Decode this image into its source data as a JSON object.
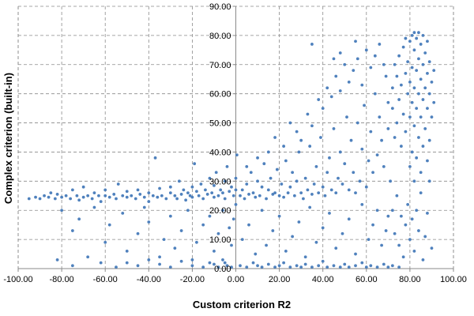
{
  "chart_data": {
    "type": "scatter",
    "xlabel": "Custom criterion R2",
    "ylabel": "Complex criterion (built-in)",
    "xlim": [
      -100,
      100
    ],
    "ylim": [
      0,
      90
    ],
    "x_ticks": [
      "-100.00",
      "-80.00",
      "-60.00",
      "-40.00",
      "-20.00",
      "0.00",
      "20.00",
      "40.00",
      "60.00",
      "80.00",
      "100.00"
    ],
    "y_ticks": [
      "0.00",
      "10.00",
      "20.00",
      "30.00",
      "40.00",
      "50.00",
      "60.00",
      "70.00",
      "80.00",
      "90.00"
    ],
    "grid": true,
    "marker_color": "#4f81bd",
    "points": [
      [
        -95,
        24
      ],
      [
        -92,
        24.5
      ],
      [
        -90,
        24
      ],
      [
        -88,
        25
      ],
      [
        -86,
        24.5
      ],
      [
        -85,
        26
      ],
      [
        -83,
        24
      ],
      [
        -82,
        25.5
      ],
      [
        -80,
        24.5
      ],
      [
        -78,
        25
      ],
      [
        -76,
        24
      ],
      [
        -75,
        27
      ],
      [
        -73,
        25
      ],
      [
        -72,
        23.5
      ],
      [
        -70,
        24.5
      ],
      [
        -70,
        28
      ],
      [
        -68,
        25
      ],
      [
        -66,
        24
      ],
      [
        -65,
        26
      ],
      [
        -63,
        25
      ],
      [
        -62,
        23
      ],
      [
        -60,
        25
      ],
      [
        -60,
        27
      ],
      [
        -58,
        24.5
      ],
      [
        -56,
        25.5
      ],
      [
        -55,
        24
      ],
      [
        -54,
        29
      ],
      [
        -52,
        25
      ],
      [
        -50,
        24.5
      ],
      [
        -50,
        26.5
      ],
      [
        -48,
        25
      ],
      [
        -46,
        24
      ],
      [
        -45,
        27
      ],
      [
        -44,
        25.5
      ],
      [
        -42,
        24.5
      ],
      [
        -40,
        26
      ],
      [
        -40,
        23
      ],
      [
        -38,
        25
      ],
      [
        -37,
        38
      ],
      [
        -36,
        24.5
      ],
      [
        -35,
        27.5
      ],
      [
        -34,
        25
      ],
      [
        -32,
        24
      ],
      [
        -30,
        26
      ],
      [
        -30,
        28
      ],
      [
        -28,
        25
      ],
      [
        -27,
        24
      ],
      [
        -26,
        30
      ],
      [
        -25,
        25.5
      ],
      [
        -24,
        27
      ],
      [
        -23,
        23.5
      ],
      [
        -22,
        26
      ],
      [
        -21,
        25
      ],
      [
        -20,
        28
      ],
      [
        -20,
        24.5
      ],
      [
        -19,
        36
      ],
      [
        -18,
        26.5
      ],
      [
        -17,
        25
      ],
      [
        -16,
        29
      ],
      [
        -15,
        24
      ],
      [
        -14,
        27
      ],
      [
        -13,
        25.5
      ],
      [
        -12,
        31
      ],
      [
        -11,
        26
      ],
      [
        -10,
        24.5
      ],
      [
        -10,
        28.5
      ],
      [
        -9,
        33
      ],
      [
        -8,
        25
      ],
      [
        -7,
        27
      ],
      [
        -6,
        26
      ],
      [
        -5,
        30
      ],
      [
        -5,
        24
      ],
      [
        -4,
        35
      ],
      [
        -3,
        26.5
      ],
      [
        -2,
        28
      ],
      [
        -1,
        25
      ],
      [
        0,
        27
      ],
      [
        0,
        31
      ],
      [
        0,
        22
      ],
      [
        0.5,
        39
      ],
      [
        -80,
        20
      ],
      [
        -75,
        13
      ],
      [
        -72,
        17
      ],
      [
        -65,
        21
      ],
      [
        -60,
        9
      ],
      [
        -58,
        15
      ],
      [
        -52,
        19
      ],
      [
        -50,
        6
      ],
      [
        -45,
        12
      ],
      [
        -42,
        21
      ],
      [
        -40,
        16
      ],
      [
        -35,
        4
      ],
      [
        -33,
        10
      ],
      [
        -30,
        18
      ],
      [
        -28,
        7
      ],
      [
        -25,
        13
      ],
      [
        -22,
        20
      ],
      [
        -20,
        3
      ],
      [
        -18,
        9
      ],
      [
        -15,
        15
      ],
      [
        -12,
        18
      ],
      [
        -10,
        6
      ],
      [
        -8,
        12
      ],
      [
        -6,
        20
      ],
      [
        -5,
        2
      ],
      [
        -3,
        14
      ],
      [
        -2,
        8
      ],
      [
        -1,
        17
      ],
      [
        -82,
        3
      ],
      [
        -75,
        1
      ],
      [
        -68,
        4
      ],
      [
        -62,
        2
      ],
      [
        -55,
        0.5
      ],
      [
        -50,
        2
      ],
      [
        -45,
        1
      ],
      [
        -40,
        3
      ],
      [
        -35,
        1.5
      ],
      [
        -30,
        0.5
      ],
      [
        -25,
        2.5
      ],
      [
        -20,
        1
      ],
      [
        -15,
        0.5
      ],
      [
        -12,
        2
      ],
      [
        -10,
        1.5
      ],
      [
        -8,
        0.5
      ],
      [
        -6,
        3
      ],
      [
        -4,
        1
      ],
      [
        -2,
        0.5
      ],
      [
        2,
        25
      ],
      [
        3,
        27
      ],
      [
        4,
        24
      ],
      [
        5,
        29
      ],
      [
        6,
        25.5
      ],
      [
        7,
        33
      ],
      [
        8,
        26
      ],
      [
        9,
        24.5
      ],
      [
        10,
        30
      ],
      [
        11,
        25
      ],
      [
        12,
        28
      ],
      [
        13,
        36
      ],
      [
        14,
        24
      ],
      [
        15,
        27
      ],
      [
        16,
        31
      ],
      [
        17,
        25.5
      ],
      [
        18,
        26
      ],
      [
        19,
        34
      ],
      [
        20,
        25
      ],
      [
        21,
        29
      ],
      [
        22,
        24.5
      ],
      [
        23,
        37
      ],
      [
        24,
        26
      ],
      [
        25,
        28
      ],
      [
        26,
        33
      ],
      [
        27,
        25
      ],
      [
        28,
        30
      ],
      [
        29,
        40
      ],
      [
        30,
        26
      ],
      [
        31,
        24
      ],
      [
        32,
        31
      ],
      [
        33,
        27
      ],
      [
        34,
        42
      ],
      [
        35,
        25.5
      ],
      [
        36,
        29
      ],
      [
        37,
        35
      ],
      [
        38,
        26
      ],
      [
        39,
        45
      ],
      [
        40,
        28
      ],
      [
        41,
        25
      ],
      [
        42,
        33
      ],
      [
        43,
        38
      ],
      [
        44,
        27
      ],
      [
        45,
        48
      ],
      [
        46,
        26
      ],
      [
        47,
        31
      ],
      [
        48,
        40
      ],
      [
        49,
        29
      ],
      [
        50,
        36
      ],
      [
        51,
        52
      ],
      [
        52,
        27
      ],
      [
        53,
        44
      ],
      [
        54,
        33
      ],
      [
        55,
        26
      ],
      [
        56,
        50
      ],
      [
        57,
        30
      ],
      [
        58,
        41
      ],
      [
        59,
        56
      ],
      [
        60,
        28
      ],
      [
        61,
        37
      ],
      [
        62,
        47
      ],
      [
        63,
        33
      ],
      [
        64,
        60
      ],
      [
        65,
        39
      ],
      [
        66,
        52
      ],
      [
        67,
        44
      ],
      [
        68,
        35
      ],
      [
        69,
        66
      ],
      [
        70,
        48
      ],
      [
        70,
        57
      ],
      [
        5,
        35
      ],
      [
        10,
        38
      ],
      [
        15,
        40
      ],
      [
        18,
        45
      ],
      [
        22,
        42
      ],
      [
        25,
        50
      ],
      [
        28,
        47
      ],
      [
        30,
        44
      ],
      [
        33,
        53
      ],
      [
        35,
        49
      ],
      [
        38,
        58
      ],
      [
        40,
        55
      ],
      [
        42,
        62
      ],
      [
        44,
        59
      ],
      [
        46,
        66
      ],
      [
        48,
        61
      ],
      [
        50,
        70
      ],
      [
        52,
        64
      ],
      [
        54,
        68
      ],
      [
        56,
        72
      ],
      [
        58,
        63
      ],
      [
        60,
        75
      ],
      [
        62,
        69
      ],
      [
        64,
        73
      ],
      [
        66,
        77
      ],
      [
        68,
        70
      ],
      [
        35,
        77
      ],
      [
        45,
        72
      ],
      [
        55,
        78
      ],
      [
        48,
        74
      ],
      [
        72,
        55
      ],
      [
        72,
        62
      ],
      [
        73,
        45
      ],
      [
        73,
        70
      ],
      [
        74,
        50
      ],
      [
        74,
        66
      ],
      [
        75,
        58
      ],
      [
        75,
        73
      ],
      [
        76,
        42
      ],
      [
        76,
        63
      ],
      [
        77,
        53
      ],
      [
        77,
        76
      ],
      [
        78,
        47
      ],
      [
        78,
        67
      ],
      [
        78,
        79
      ],
      [
        79,
        60
      ],
      [
        79,
        71
      ],
      [
        80,
        52
      ],
      [
        80,
        64
      ],
      [
        80,
        78
      ],
      [
        81,
        57
      ],
      [
        81,
        69
      ],
      [
        81,
        80
      ],
      [
        82,
        49
      ],
      [
        82,
        62
      ],
      [
        82,
        75
      ],
      [
        82,
        81
      ],
      [
        83,
        55
      ],
      [
        83,
        68
      ],
      [
        83,
        79
      ],
      [
        84,
        60
      ],
      [
        84,
        72
      ],
      [
        84,
        81
      ],
      [
        85,
        52
      ],
      [
        85,
        65
      ],
      [
        85,
        77
      ],
      [
        86,
        58
      ],
      [
        86,
        70
      ],
      [
        86,
        80
      ],
      [
        87,
        62
      ],
      [
        87,
        74
      ],
      [
        88,
        55
      ],
      [
        88,
        67
      ],
      [
        88,
        78
      ],
      [
        89,
        60
      ],
      [
        89,
        71
      ],
      [
        90,
        52
      ],
      [
        90,
        64
      ],
      [
        91,
        57
      ],
      [
        91,
        68
      ],
      [
        80,
        35
      ],
      [
        81,
        40
      ],
      [
        82,
        30
      ],
      [
        83,
        38
      ],
      [
        84,
        45
      ],
      [
        85,
        33
      ],
      [
        86,
        42
      ],
      [
        87,
        48
      ],
      [
        88,
        37
      ],
      [
        89,
        44
      ],
      [
        71,
        30
      ],
      [
        72,
        20
      ],
      [
        73,
        12
      ],
      [
        74,
        25
      ],
      [
        75,
        8
      ],
      [
        76,
        18
      ],
      [
        77,
        4
      ],
      [
        78,
        15
      ],
      [
        79,
        22
      ],
      [
        80,
        10
      ],
      [
        81,
        17
      ],
      [
        82,
        6
      ],
      [
        83,
        20
      ],
      [
        84,
        13
      ],
      [
        85,
        26
      ],
      [
        86,
        3
      ],
      [
        87,
        11
      ],
      [
        88,
        19
      ],
      [
        89,
        30
      ],
      [
        90,
        7
      ],
      [
        2,
        1
      ],
      [
        5,
        0.5
      ],
      [
        8,
        2
      ],
      [
        10,
        1
      ],
      [
        12,
        0.5
      ],
      [
        15,
        1.5
      ],
      [
        18,
        0.5
      ],
      [
        20,
        1
      ],
      [
        22,
        2
      ],
      [
        25,
        0.5
      ],
      [
        28,
        1
      ],
      [
        30,
        0.5
      ],
      [
        32,
        1.5
      ],
      [
        35,
        0.5
      ],
      [
        38,
        1
      ],
      [
        40,
        2.5
      ],
      [
        42,
        0.5
      ],
      [
        45,
        1
      ],
      [
        48,
        0.5
      ],
      [
        50,
        1.5
      ],
      [
        52,
        0.5
      ],
      [
        55,
        1
      ],
      [
        58,
        2
      ],
      [
        60,
        0.5
      ],
      [
        62,
        1
      ],
      [
        65,
        0.5
      ],
      [
        68,
        1.5
      ],
      [
        70,
        0.5
      ],
      [
        72,
        1
      ],
      [
        75,
        0.5
      ],
      [
        3,
        10
      ],
      [
        6,
        15
      ],
      [
        9,
        5
      ],
      [
        12,
        20
      ],
      [
        14,
        8
      ],
      [
        17,
        13
      ],
      [
        20,
        18
      ],
      [
        23,
        6
      ],
      [
        26,
        11
      ],
      [
        29,
        16
      ],
      [
        32,
        4
      ],
      [
        34,
        21
      ],
      [
        37,
        9
      ],
      [
        40,
        14
      ],
      [
        43,
        19
      ],
      [
        46,
        7
      ],
      [
        49,
        12
      ],
      [
        52,
        17
      ],
      [
        55,
        5
      ],
      [
        58,
        22
      ],
      [
        61,
        10
      ],
      [
        63,
        15
      ],
      [
        65,
        20
      ],
      [
        67,
        8
      ],
      [
        69,
        13
      ],
      [
        70,
        18
      ]
    ]
  }
}
